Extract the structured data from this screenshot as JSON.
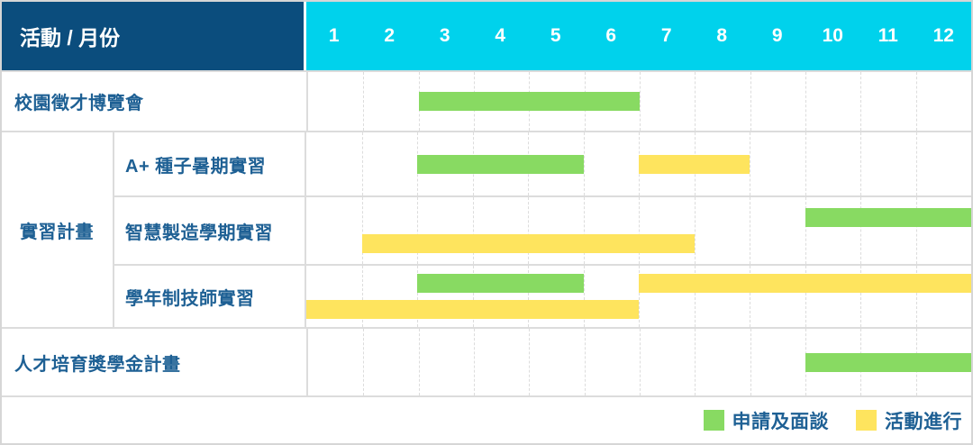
{
  "header": {
    "title": "活動 / 月份"
  },
  "chart_data": {
    "type": "gantt",
    "title": "活動 / 月份",
    "months": [
      "1",
      "2",
      "3",
      "4",
      "5",
      "6",
      "7",
      "8",
      "9",
      "10",
      "11",
      "12"
    ],
    "x_range": [
      1,
      12
    ],
    "grid": "dashed-vertical-per-month",
    "group_label": "實習計畫",
    "colors": {
      "header_bg": "#0b4d7d",
      "month_header_bg": "#00d2ec",
      "apply": "#88da62",
      "ongoing": "#fee45e",
      "label_text": "#1e6094",
      "grid_line": "#dcdcdc"
    },
    "legend": [
      {
        "key": "apply",
        "label": "申請及面談",
        "color": "#88da62"
      },
      {
        "key": "ongoing",
        "label": "活動進行",
        "color": "#fee45e"
      }
    ],
    "legend_position": "bottom-right",
    "rows": [
      {
        "label": "校園徵才博覽會",
        "group": null,
        "lines": [
          [
            {
              "type": "apply",
              "start_month": 3,
              "end_month": 6
            }
          ]
        ]
      },
      {
        "label": "A+ 種子暑期實習",
        "group": "實習計畫",
        "lines": [
          [
            {
              "type": "apply",
              "start_month": 3,
              "end_month": 5
            },
            {
              "type": "ongoing",
              "start_month": 7,
              "end_month": 8
            }
          ]
        ]
      },
      {
        "label": "智慧製造學期實習",
        "group": "實習計畫",
        "lines": [
          [
            {
              "type": "apply",
              "start_month": 10,
              "end_month": 12
            }
          ],
          [
            {
              "type": "ongoing",
              "start_month": 2,
              "end_month": 7
            }
          ]
        ]
      },
      {
        "label": "學年制技師實習",
        "group": "實習計畫",
        "lines": [
          [
            {
              "type": "apply",
              "start_month": 3,
              "end_month": 5
            },
            {
              "type": "ongoing",
              "start_month": 7,
              "end_month": 12
            }
          ],
          [
            {
              "type": "ongoing",
              "start_month": 1,
              "end_month": 6
            }
          ]
        ]
      },
      {
        "label": "人才培育獎學金計畫",
        "group": null,
        "lines": [
          [
            {
              "type": "apply",
              "start_month": 10,
              "end_month": 12
            }
          ]
        ]
      }
    ]
  }
}
